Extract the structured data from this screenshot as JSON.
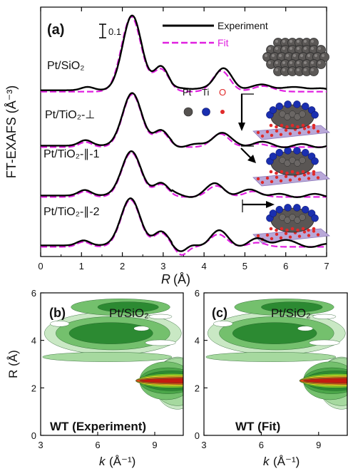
{
  "colors": {
    "experiment": "#000000",
    "fit": "#e020e0",
    "pt_atom": "#55524f",
    "ti_atom": "#1a2fb0",
    "o_atom": "#e02a2a",
    "arrow": "#000000"
  },
  "chart_data": [
    {
      "type": "line",
      "panel_label": "(a)",
      "ylabel": "FT-EXAFS (Å⁻³)",
      "xlabel_symbol": "R",
      "xlabel_unit": "(Å)",
      "xlim": [
        0,
        7
      ],
      "x_ticks": [
        "0",
        "1",
        "2",
        "3",
        "4",
        "5",
        "6",
        "7"
      ],
      "scale_bar_label": "0.1",
      "legend": {
        "position": "top-center",
        "entries": [
          "Experiment",
          "Fit"
        ]
      },
      "atom_legend": [
        "Pt",
        "Ti",
        "O"
      ],
      "series": [
        {
          "label": "Pt/SiO₂",
          "offset": 0.6,
          "peaks": [
            [
              1.15,
              0.012,
              0.22
            ],
            [
              2.24,
              0.27,
              0.33
            ],
            [
              2.95,
              0.085,
              0.25
            ],
            [
              3.9,
              0.012,
              0.25
            ],
            [
              4.5,
              0.078,
              0.3
            ],
            [
              5.5,
              0.024,
              0.3
            ],
            [
              6.4,
              0.015,
              0.3
            ]
          ],
          "fit_peaks": [
            [
              2.22,
              0.27,
              0.34
            ],
            [
              2.95,
              0.08,
              0.27
            ],
            [
              4.42,
              0.075,
              0.3
            ],
            [
              5.45,
              0.02,
              0.35
            ]
          ]
        },
        {
          "label": "Pt/TiO₂-⊥",
          "offset": 0.4,
          "peaks": [
            [
              1.1,
              0.02,
              0.22
            ],
            [
              2.24,
              0.19,
              0.33
            ],
            [
              2.95,
              0.055,
              0.25
            ],
            [
              4.4,
              0.048,
              0.3
            ],
            [
              5.3,
              0.012,
              0.3
            ]
          ],
          "fit_peaks": [
            [
              1.1,
              0.018,
              0.22
            ],
            [
              2.24,
              0.19,
              0.33
            ],
            [
              2.95,
              0.055,
              0.25
            ],
            [
              4.4,
              0.048,
              0.3
            ],
            [
              5.3,
              0.012,
              0.3
            ]
          ]
        },
        {
          "label": "Pt/TiO₂-∥-1",
          "offset": 0.22,
          "peaks": [
            [
              1.08,
              0.02,
              0.22
            ],
            [
              2.22,
              0.16,
              0.33
            ],
            [
              2.95,
              0.045,
              0.25
            ],
            [
              4.3,
              0.042,
              0.3
            ],
            [
              5.2,
              0.02,
              0.3
            ]
          ],
          "fit_peaks": [
            [
              1.08,
              0.02,
              0.22
            ],
            [
              2.22,
              0.16,
              0.33
            ],
            [
              2.95,
              0.045,
              0.25
            ],
            [
              4.3,
              0.04,
              0.3
            ],
            [
              5.2,
              0.02,
              0.3
            ]
          ]
        },
        {
          "label": "Pt/TiO₂-∥-2",
          "offset": 0.04,
          "peaks": [
            [
              1.05,
              0.018,
              0.22
            ],
            [
              2.2,
              0.17,
              0.33
            ],
            [
              2.95,
              0.05,
              0.25
            ],
            [
              3.45,
              -0.025,
              0.2
            ],
            [
              4.35,
              0.05,
              0.3
            ],
            [
              5.3,
              0.02,
              0.3
            ],
            [
              5.9,
              0.02,
              0.3
            ]
          ],
          "fit_peaks": [
            [
              1.05,
              0.018,
              0.22
            ],
            [
              2.2,
              0.17,
              0.33
            ],
            [
              2.95,
              0.05,
              0.25
            ],
            [
              3.45,
              -0.03,
              0.2
            ],
            [
              4.35,
              0.045,
              0.3
            ],
            [
              5.3,
              0.015,
              0.3
            ]
          ]
        }
      ]
    },
    {
      "type": "heatmap",
      "panel_label": "(b)",
      "sample": "Pt/SiO₂",
      "caption": "WT (Experiment)",
      "xlabel_symbol": "k",
      "xlabel_unit": "(Å⁻¹)",
      "ylabel": "R (Å)",
      "xlim": [
        3,
        10.5
      ],
      "ylim": [
        0,
        6
      ],
      "x_ticks": [
        "3",
        "6",
        "9"
      ],
      "y_ticks": [
        "0",
        "2",
        "4",
        "6"
      ]
    },
    {
      "type": "heatmap",
      "panel_label": "(c)",
      "sample": "Pt/SiO₂",
      "caption": "WT (Fit)",
      "xlabel_symbol": "k",
      "xlabel_unit": "(Å⁻¹)",
      "xlim": [
        3,
        10.5
      ],
      "ylim": [
        0,
        6
      ],
      "x_ticks": [
        "3",
        "6",
        "9"
      ],
      "y_ticks": [
        "0",
        "2",
        "4",
        "6"
      ]
    }
  ]
}
